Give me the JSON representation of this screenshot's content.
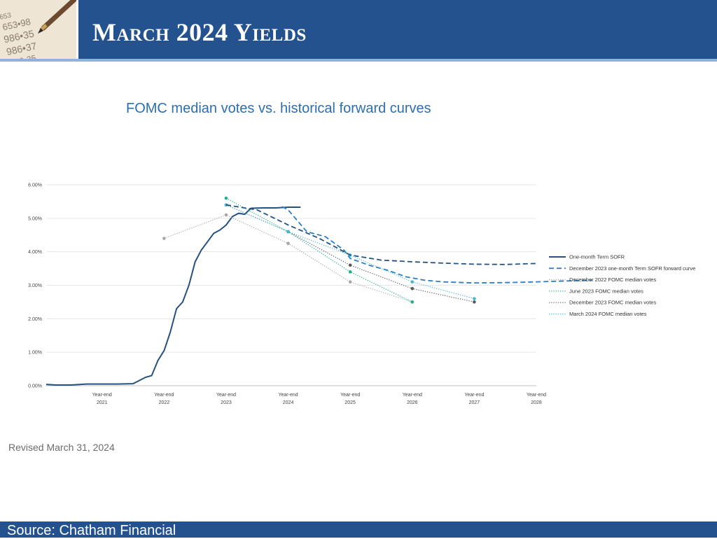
{
  "slide": {
    "title": "March 2024 Yields",
    "revised": "Revised March 31, 2024",
    "source": "Source: Chatham Financial",
    "thumbnail_icon": "ledger-pen-icon",
    "colors": {
      "header": "#24528f",
      "stripe": "#8fb4d9",
      "chart_title": "#2a6fb3"
    }
  },
  "chart_data": {
    "type": "line",
    "title": "FOMC median votes vs. historical forward curves",
    "ylim": [
      0,
      6
    ],
    "xlim": [
      2020.1,
      2028
    ],
    "y_ticks": [
      0,
      1,
      2,
      3,
      4,
      5,
      6
    ],
    "y_tick_labels": [
      "0.00%",
      "1.00%",
      "2.00%",
      "3.00%",
      "4.00%",
      "5.00%",
      "6.00%"
    ],
    "x_ticks": [
      2021,
      2022,
      2023,
      2024,
      2025,
      2026,
      2027,
      2028
    ],
    "x_tick_labels": [
      [
        "Year-end",
        "2021"
      ],
      [
        "Year-end",
        "2022"
      ],
      [
        "Year-end",
        "2023"
      ],
      [
        "Year-end",
        "2024"
      ],
      [
        "Year-end",
        "2025"
      ],
      [
        "Year-end",
        "2026"
      ],
      [
        "Year-end",
        "2027"
      ],
      [
        "Year-end",
        "2028"
      ]
    ],
    "grid": "horizontal",
    "legend_position": "right",
    "series": [
      {
        "name": "One-month Term SOFR",
        "style": "solid",
        "color": "#24517e",
        "markers": false,
        "points": [
          [
            2020.1,
            0.04
          ],
          [
            2020.25,
            0.02
          ],
          [
            2020.5,
            0.02
          ],
          [
            2020.75,
            0.05
          ],
          [
            2021,
            0.05
          ],
          [
            2021.25,
            0.05
          ],
          [
            2021.5,
            0.06
          ],
          [
            2021.7,
            0.25
          ],
          [
            2021.8,
            0.3
          ],
          [
            2021.9,
            0.75
          ],
          [
            2022,
            1.05
          ],
          [
            2022.1,
            1.6
          ],
          [
            2022.2,
            2.3
          ],
          [
            2022.3,
            2.5
          ],
          [
            2022.4,
            3.0
          ],
          [
            2022.5,
            3.7
          ],
          [
            2022.6,
            4.05
          ],
          [
            2022.7,
            4.3
          ],
          [
            2022.8,
            4.55
          ],
          [
            2022.9,
            4.65
          ],
          [
            2023,
            4.8
          ],
          [
            2023.1,
            5.05
          ],
          [
            2023.2,
            5.15
          ],
          [
            2023.3,
            5.12
          ],
          [
            2023.4,
            5.3
          ],
          [
            2023.6,
            5.31
          ],
          [
            2023.8,
            5.31
          ],
          [
            2024,
            5.33
          ],
          [
            2024.2,
            5.33
          ]
        ]
      },
      {
        "name": "December 2023 one-month Term SOFR forward curve",
        "style": "dash",
        "color": "#2d7ec4",
        "markers": false,
        "points": [
          [
            2023.9,
            5.35
          ],
          [
            2024.0,
            5.25
          ],
          [
            2024.3,
            4.6
          ],
          [
            2024.6,
            4.45
          ],
          [
            2024.9,
            4.05
          ],
          [
            2025.0,
            3.8
          ],
          [
            2025.3,
            3.6
          ],
          [
            2025.6,
            3.45
          ],
          [
            2025.9,
            3.25
          ],
          [
            2026.2,
            3.15
          ],
          [
            2026.5,
            3.1
          ],
          [
            2027.0,
            3.07
          ],
          [
            2027.5,
            3.08
          ],
          [
            2028,
            3.1
          ],
          [
            2028.5,
            3.13
          ],
          [
            2028.9,
            3.15
          ]
        ]
      },
      {
        "name": "December 2022 FOMC median votes",
        "style": "dot",
        "color": "#a6a6a6",
        "markers": true,
        "points": [
          [
            2022,
            4.4
          ],
          [
            2023,
            5.1
          ],
          [
            2024,
            4.25
          ],
          [
            2025,
            3.1
          ],
          [
            2026,
            2.5
          ]
        ]
      },
      {
        "name": "June 2023 FOMC median votes",
        "style": "dot",
        "color": "#1bb08f",
        "markers": true,
        "points": [
          [
            2023,
            5.6
          ],
          [
            2024,
            4.6
          ],
          [
            2025,
            3.4
          ],
          [
            2026,
            2.5
          ]
        ]
      },
      {
        "name": "December 2023 FOMC median votes",
        "style": "dot",
        "color": "#595959",
        "markers": true,
        "points": [
          [
            2023,
            5.4
          ],
          [
            2024,
            4.6
          ],
          [
            2025,
            3.6
          ],
          [
            2026,
            2.9
          ],
          [
            2027,
            2.5
          ]
        ]
      },
      {
        "name": "March 2024 FOMC median votes",
        "style": "dot",
        "color": "#48b7d6",
        "markers": true,
        "points": [
          [
            2023,
            5.4
          ],
          [
            2024,
            4.6
          ],
          [
            2025,
            3.9
          ],
          [
            2026,
            3.1
          ],
          [
            2027,
            2.6
          ]
        ]
      },
      {
        "name": "",
        "style": "dash",
        "color": "#24517e",
        "markers": false,
        "points": [
          [
            2023,
            5.4
          ],
          [
            2023.5,
            5.25
          ],
          [
            2024,
            4.8
          ],
          [
            2024.5,
            4.4
          ],
          [
            2025,
            3.9
          ],
          [
            2025.5,
            3.75
          ],
          [
            2026,
            3.7
          ],
          [
            2026.5,
            3.66
          ],
          [
            2027,
            3.63
          ],
          [
            2027.5,
            3.62
          ],
          [
            2028,
            3.65
          ]
        ]
      }
    ]
  }
}
